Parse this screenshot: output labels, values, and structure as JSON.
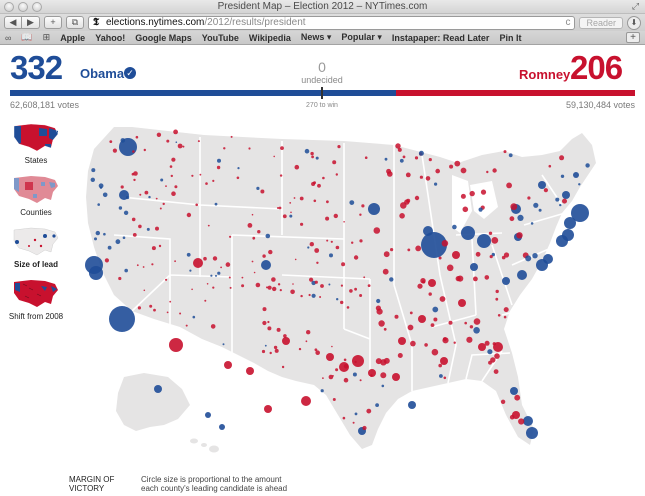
{
  "window": {
    "title": "President Map – Election 2012 – NYTimes.com"
  },
  "toolbar": {
    "back_glyph": "◀",
    "forward_glyph": "▶",
    "plus_glyph": "+",
    "share_glyph": "⧉",
    "url_logo": "𝕿",
    "url_domain": "elections.nytimes.com",
    "url_path": "/2012/results/president",
    "reload_glyph": "c",
    "reader_label": "Reader",
    "download_glyph": "⬇"
  },
  "bookmarks": {
    "items": [
      {
        "label": "Apple"
      },
      {
        "label": "Yahoo!"
      },
      {
        "label": "Google Maps"
      },
      {
        "label": "YouTube"
      },
      {
        "label": "Wikipedia"
      },
      {
        "label": "News ▾"
      },
      {
        "label": "Popular ▾"
      },
      {
        "label": "Instapaper: Read Later"
      },
      {
        "label": "Pin It"
      }
    ],
    "reading_list_glyph": "∞",
    "bookmarks_glyph": "📖",
    "grid_glyph": "⊞",
    "new_tab_glyph": "+"
  },
  "tally": {
    "obama_electoral": "332",
    "obama_name": "Obama",
    "check_glyph": "✓",
    "obama_votes": "62,608,181 votes",
    "undecided_count": "0",
    "undecided_label": "undecided",
    "win_threshold": "270 to win",
    "romney_name": "Romney",
    "romney_electoral": "206",
    "romney_votes": "59,130,484 votes",
    "colors": {
      "dem": "#1f4d98",
      "rep": "#c8112e"
    }
  },
  "views": [
    {
      "label": "States",
      "icon": "states-map-icon",
      "active": false
    },
    {
      "label": "Counties",
      "icon": "counties-map-icon",
      "active": false
    },
    {
      "label": "Size of lead",
      "icon": "size-of-lead-map-icon",
      "active": true
    },
    {
      "label": "Shift from 2008",
      "icon": "shift-map-icon",
      "active": false
    }
  ],
  "legend": {
    "title": "MARGIN OF VICTORY",
    "description": "Circle size is proportional to the amount each county's leading candidate is ahead"
  }
}
